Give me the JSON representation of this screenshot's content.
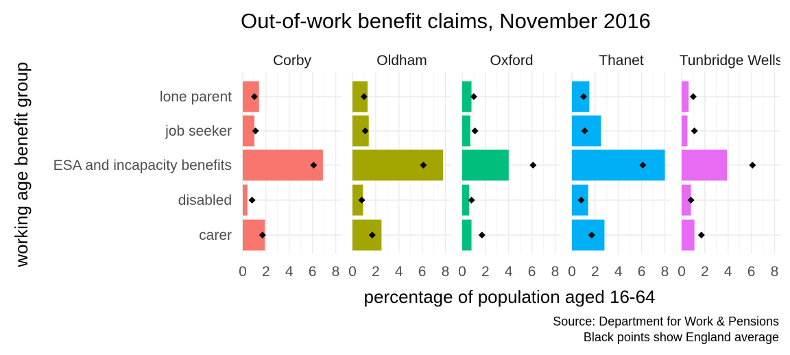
{
  "chart_data": {
    "type": "bar",
    "orientation": "horizontal",
    "title": "Out-of-work benefit claims, November 2016",
    "xlabel": "percentage of population aged 16-64",
    "ylabel": "working age benefit group",
    "caption_lines": [
      "Source: Department for Work & Pensions",
      "Black points show England average"
    ],
    "categories": [
      "lone parent",
      "job seeker",
      "ESA and incapacity benefits",
      "disabled",
      "carer"
    ],
    "xlim": [
      0,
      8.5
    ],
    "xticks": [
      0,
      2,
      4,
      6,
      8
    ],
    "grid": true,
    "legend": "none",
    "england_average": [
      1.0,
      1.1,
      6.1,
      0.8,
      1.7
    ],
    "panels": [
      {
        "name": "Corby",
        "color": "#F8766D",
        "values": [
          1.4,
          1.0,
          6.9,
          0.4,
          1.9
        ]
      },
      {
        "name": "Oldham",
        "color": "#A3A500",
        "values": [
          1.3,
          1.4,
          7.8,
          0.9,
          2.5
        ]
      },
      {
        "name": "Oxford",
        "color": "#00BF7D",
        "values": [
          0.8,
          0.7,
          4.0,
          0.6,
          0.8
        ]
      },
      {
        "name": "Thanet",
        "color": "#00B0F6",
        "values": [
          1.5,
          2.5,
          8.0,
          1.4,
          2.8
        ]
      },
      {
        "name": "Tunbridge Wells",
        "color": "#E76BF3",
        "values": [
          0.6,
          0.5,
          3.9,
          0.8,
          1.1
        ]
      }
    ]
  }
}
